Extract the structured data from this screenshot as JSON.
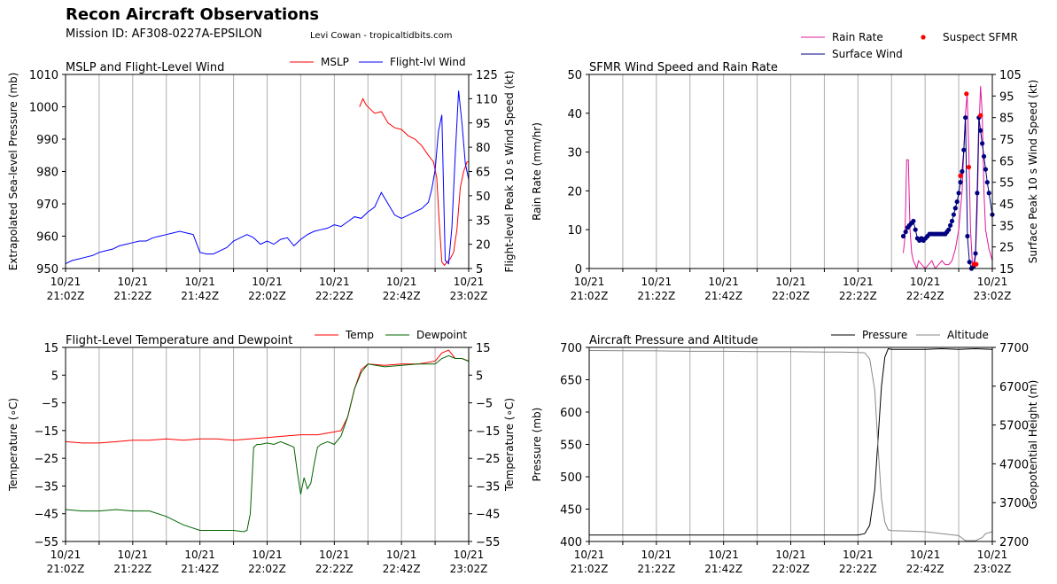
{
  "header": {
    "title": "Recon Aircraft Observations",
    "mission": "Mission ID: AF308-0227A-EPSILON",
    "credit": "Levi Cowan - tropicaltidbits.com"
  },
  "colors": {
    "mslp": "#ff0000",
    "flight_wind": "#0000ff",
    "rain_rate": "#e0189c",
    "surface_wind": "#000080",
    "suspect_sfmr": "#ff0000",
    "temp": "#ff0000",
    "dewpoint": "#006400",
    "pressure": "#000000",
    "altitude": "#888888",
    "grid": "#b0b0b0"
  },
  "time_axis": {
    "x_min": 0,
    "x_max": 120,
    "ticks": [
      {
        "x": 0,
        "date": "10/21",
        "time": "21:02Z"
      },
      {
        "x": 20,
        "date": "10/21",
        "time": "21:22Z"
      },
      {
        "x": 40,
        "date": "10/21",
        "time": "21:42Z"
      },
      {
        "x": 60,
        "date": "10/21",
        "time": "22:02Z"
      },
      {
        "x": 80,
        "date": "10/21",
        "time": "22:22Z"
      },
      {
        "x": 100,
        "date": "10/21",
        "time": "22:42Z"
      },
      {
        "x": 120,
        "date": "10/21",
        "time": "23:02Z"
      }
    ],
    "grid_every": 10
  },
  "chart_data": [
    {
      "type": "line",
      "title": "MSLP and Flight-Level Wind",
      "ylabel": "Extrapolated Sea-level Pressure (mb)",
      "ylim": [
        950,
        1010
      ],
      "yticks": [
        950,
        960,
        970,
        980,
        990,
        1000,
        1010
      ],
      "y2label": "Flight-level Peak 10 s Wind Speed (kt)",
      "y2lim": [
        5,
        125
      ],
      "y2ticks": [
        5,
        20,
        35,
        50,
        65,
        80,
        95,
        110,
        125
      ],
      "legend": [
        "MSLP",
        "Flight-lvl Wind"
      ],
      "series": [
        {
          "name": "MSLP",
          "axis": "left",
          "color_key": "mslp",
          "x": [
            87.5,
            88.5,
            89.5,
            90.5,
            92,
            94,
            96,
            98,
            100,
            102,
            104,
            106,
            108,
            109.5,
            110.5,
            111.2,
            112,
            112.8,
            113.5,
            114.5,
            115.5,
            116.5,
            117.5,
            118.5,
            119.5,
            120
          ],
          "y": [
            1000,
            1002.5,
            1000.5,
            999.5,
            998,
            998.5,
            995,
            993.5,
            993,
            991,
            990,
            988,
            985,
            983,
            978,
            965,
            952,
            951,
            952,
            953,
            955,
            962,
            975,
            980,
            983,
            983
          ]
        },
        {
          "name": "Flight-lvl Wind",
          "axis": "right",
          "color_key": "flight_wind",
          "x": [
            0,
            2,
            4,
            6,
            8,
            10,
            12,
            14,
            16,
            18,
            20,
            22,
            24,
            26,
            28,
            30,
            32,
            34,
            36,
            38,
            40,
            42,
            44,
            46,
            48,
            50,
            52,
            54,
            56,
            58,
            60,
            62,
            64,
            66,
            68,
            70,
            72,
            74,
            76,
            78,
            80,
            82,
            84,
            86,
            88,
            90,
            92,
            94,
            96,
            98,
            100,
            102,
            104,
            106,
            108,
            109,
            110,
            111,
            112,
            113,
            114,
            115,
            116,
            117,
            118,
            119,
            120
          ],
          "y": [
            8,
            10,
            11,
            12,
            13,
            15,
            16,
            17,
            19,
            20,
            21,
            22,
            22,
            24,
            25,
            26,
            27,
            28,
            27,
            26,
            15,
            14,
            14,
            16,
            18,
            22,
            24,
            26,
            24,
            20,
            22,
            20,
            23,
            24,
            19,
            23,
            26,
            28,
            29,
            30,
            32,
            31,
            34,
            37,
            36,
            40,
            43,
            52,
            45,
            38,
            36,
            38,
            40,
            42,
            46,
            54,
            66,
            90,
            100,
            10,
            8,
            30,
            75,
            115,
            95,
            70,
            60
          ]
        }
      ]
    },
    {
      "type": "line",
      "title": "SFMR Wind Speed and Rain Rate",
      "ylabel": "Rain Rate (mm/hr)",
      "ylim": [
        0,
        50
      ],
      "yticks": [
        0,
        10,
        20,
        30,
        40,
        50
      ],
      "y2label": "Surface Peak 10 s Wind Speed (kt)",
      "y2lim": [
        15,
        105
      ],
      "y2ticks": [
        15,
        25,
        35,
        45,
        55,
        65,
        75,
        85,
        95,
        105
      ],
      "legend": [
        "Rain Rate",
        "Surface Wind",
        "Suspect SFMR"
      ],
      "legend_position": "above-top-right",
      "series": [
        {
          "name": "Rain Rate",
          "axis": "left",
          "color_key": "rain_rate",
          "x": [
            93.5,
            94,
            94.5,
            95,
            95.5,
            96,
            96.5,
            97,
            97.5,
            98,
            99,
            100,
            101,
            102,
            103,
            104,
            105,
            106,
            107,
            108,
            109,
            110,
            111,
            112,
            112.5,
            113,
            113.5,
            114,
            114.5,
            115,
            115.5,
            116,
            116.5,
            117,
            117.5,
            118,
            119,
            120
          ],
          "y": [
            4,
            8,
            28,
            28,
            10,
            4,
            2,
            1,
            0,
            2,
            1,
            0,
            1,
            2,
            0,
            1,
            2,
            1,
            1,
            2,
            5,
            10,
            20,
            40,
            45,
            30,
            10,
            2,
            0,
            3,
            15,
            35,
            47,
            40,
            20,
            10,
            5,
            2
          ]
        },
        {
          "name": "Surface Wind",
          "axis": "right",
          "color_key": "surface_wind",
          "markers": true,
          "x": [
            93.5,
            94.2,
            94.8,
            95.3,
            95.9,
            96.5,
            97.1,
            97.7,
            98.3,
            98.9,
            99.5,
            100.1,
            100.7,
            101.3,
            101.9,
            102.5,
            103.1,
            103.7,
            104.3,
            104.9,
            105.5,
            106,
            106.5,
            107,
            107.5,
            108,
            108.5,
            109,
            109.5,
            110,
            110.5,
            111,
            111.5,
            112,
            112.6,
            113.2,
            113.8,
            114.4,
            115,
            115.5,
            116,
            116.5,
            117,
            117.5,
            118,
            118.5,
            119,
            120
          ],
          "y": [
            30,
            32,
            34,
            35,
            36,
            37,
            33,
            29,
            28,
            29,
            28,
            29,
            30,
            31,
            31,
            31,
            31,
            31,
            31,
            31,
            31,
            31,
            32,
            33,
            35,
            37,
            40,
            43,
            46,
            50,
            55,
            60,
            70,
            85,
            30,
            18,
            15,
            16,
            22,
            50,
            85,
            79,
            73,
            67,
            61,
            55,
            50,
            40
          ]
        },
        {
          "name": "Suspect SFMR",
          "axis": "right",
          "color_key": "suspect_sfmr",
          "scatter": true,
          "x": [
            110.5,
            112.3,
            113,
            114.5,
            115.2,
            116.5
          ],
          "y": [
            58,
            96,
            62,
            17,
            17,
            86
          ]
        }
      ]
    },
    {
      "type": "line",
      "title": "Flight-Level Temperature and Dewpoint",
      "ylabel": "Temperature (∘C)",
      "ylim": [
        -55,
        15
      ],
      "yticks": [
        -55,
        -45,
        -35,
        -25,
        -15,
        -5,
        5,
        15
      ],
      "y2label": "Temperature (∘C)",
      "y2lim": [
        -55,
        15
      ],
      "y2ticks": [
        -55,
        -45,
        -35,
        -25,
        -15,
        -5,
        5,
        15
      ],
      "legend": [
        "Temp",
        "Dewpoint"
      ],
      "series": [
        {
          "name": "Temp",
          "axis": "left",
          "color_key": "temp",
          "x": [
            0,
            5,
            10,
            15,
            20,
            25,
            30,
            35,
            40,
            45,
            50,
            55,
            60,
            65,
            70,
            75,
            80,
            82,
            84,
            86,
            88,
            90,
            95,
            100,
            105,
            110,
            112,
            114,
            116,
            118,
            120
          ],
          "y": [
            -19,
            -19.5,
            -19.5,
            -19,
            -18.5,
            -18.5,
            -18,
            -18.5,
            -18,
            -18,
            -18.5,
            -18,
            -17.5,
            -17,
            -16.5,
            -16.5,
            -15.5,
            -15,
            -10,
            0,
            7,
            9,
            8.5,
            9,
            9,
            10,
            13,
            14,
            11,
            11,
            10
          ]
        },
        {
          "name": "Dewpoint",
          "axis": "left",
          "color_key": "dewpoint",
          "x": [
            0,
            5,
            10,
            15,
            20,
            25,
            30,
            35,
            40,
            45,
            50,
            53,
            54,
            55,
            56,
            57,
            58,
            60,
            62,
            64,
            66,
            68,
            69,
            70,
            71,
            72,
            73,
            74,
            75,
            76,
            78,
            80,
            82,
            84,
            86,
            88,
            90,
            95,
            100,
            105,
            110,
            112,
            114,
            116,
            118,
            120
          ],
          "y": [
            -43.5,
            -44,
            -44,
            -43.5,
            -44,
            -44,
            -46,
            -49,
            -51,
            -51,
            -51,
            -51.5,
            -51,
            -45,
            -21,
            -20,
            -20,
            -19.5,
            -20,
            -19,
            -20,
            -21,
            -30,
            -38,
            -32,
            -36,
            -34,
            -27,
            -21,
            -20,
            -19,
            -20,
            -17,
            -10,
            0,
            6,
            9,
            8,
            8.5,
            9,
            9,
            11,
            12,
            11,
            11,
            10
          ]
        }
      ]
    },
    {
      "type": "line",
      "title": "Aircraft Pressure and Altitude",
      "ylabel": "Pressure (mb)",
      "ylim": [
        400,
        700
      ],
      "yticks": [
        400,
        450,
        500,
        550,
        600,
        650,
        700
      ],
      "y2label": "Geopotential Height (m)",
      "y2lim": [
        2700,
        7700
      ],
      "y2ticks": [
        2700,
        3700,
        4700,
        5700,
        6700,
        7700
      ],
      "legend": [
        "Pressure",
        "Altitude"
      ],
      "series": [
        {
          "name": "Pressure",
          "axis": "left",
          "color_key": "pressure",
          "x": [
            0,
            10,
            20,
            30,
            40,
            50,
            60,
            70,
            75,
            80,
            82,
            83.5,
            85,
            86,
            87,
            88,
            89,
            90,
            95,
            100,
            105,
            110,
            115,
            120
          ],
          "y": [
            410,
            410,
            410,
            410,
            410,
            410,
            410,
            410,
            410,
            410,
            412,
            425,
            480,
            560,
            640,
            685,
            698,
            697,
            697,
            697,
            698,
            697,
            698,
            697
          ]
        },
        {
          "name": "Altitude",
          "axis": "right",
          "color_key": "altitude",
          "x": [
            0,
            10,
            20,
            30,
            40,
            50,
            60,
            70,
            75,
            80,
            82,
            83.5,
            85,
            86,
            87,
            88,
            89,
            90,
            95,
            100,
            105,
            110,
            112,
            115,
            117,
            118,
            120
          ],
          "y": [
            7620,
            7615,
            7610,
            7600,
            7600,
            7590,
            7590,
            7580,
            7580,
            7570,
            7560,
            7400,
            6600,
            5100,
            3800,
            3200,
            3000,
            2980,
            2970,
            2950,
            2900,
            2850,
            2720,
            2720,
            2800,
            2900,
            2950
          ]
        }
      ]
    }
  ]
}
